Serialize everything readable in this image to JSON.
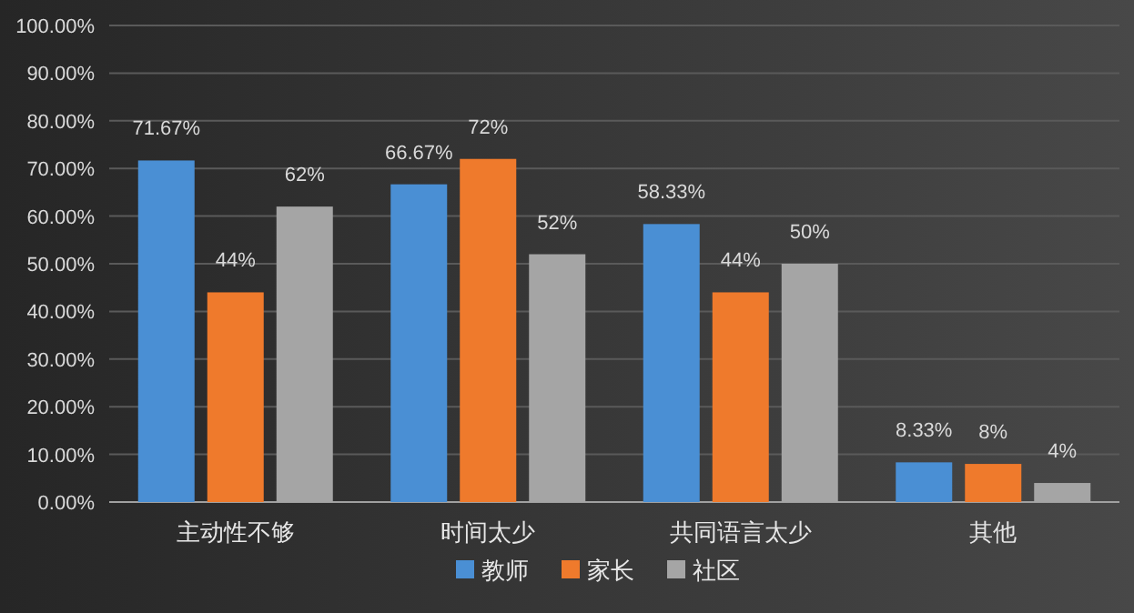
{
  "chart_data": {
    "type": "bar",
    "categories": [
      "主动性不够",
      "时间太少",
      "共同语言太少",
      "其他"
    ],
    "series": [
      {
        "name": "教师",
        "color": "#4a8fd4",
        "values": [
          71.67,
          66.67,
          58.33,
          8.33
        ],
        "value_labels": [
          "71.67%",
          "66.67%",
          "58.33%",
          "8.33%"
        ]
      },
      {
        "name": "家长",
        "color": "#ef7a2c",
        "values": [
          44,
          72,
          44,
          8
        ],
        "value_labels": [
          "44%",
          "72%",
          "44%",
          "8%"
        ]
      },
      {
        "name": "社区",
        "color": "#a5a5a5",
        "values": [
          62,
          52,
          50,
          4
        ],
        "value_labels": [
          "62%",
          "52%",
          "50%",
          "4%"
        ]
      }
    ],
    "ylim": [
      0,
      100
    ],
    "yticks": [
      {
        "value": 0,
        "label": "0.00%"
      },
      {
        "value": 10,
        "label": "10.00%"
      },
      {
        "value": 20,
        "label": "20.00%"
      },
      {
        "value": 30,
        "label": "30.00%"
      },
      {
        "value": 40,
        "label": "40.00%"
      },
      {
        "value": 50,
        "label": "50.00%"
      },
      {
        "value": 60,
        "label": "60.00%"
      },
      {
        "value": 70,
        "label": "70.00%"
      },
      {
        "value": 80,
        "label": "80.00%"
      },
      {
        "value": 90,
        "label": "90.00%"
      },
      {
        "value": 100,
        "label": "100.00%"
      }
    ],
    "grid": "y",
    "legend": "bottom"
  }
}
